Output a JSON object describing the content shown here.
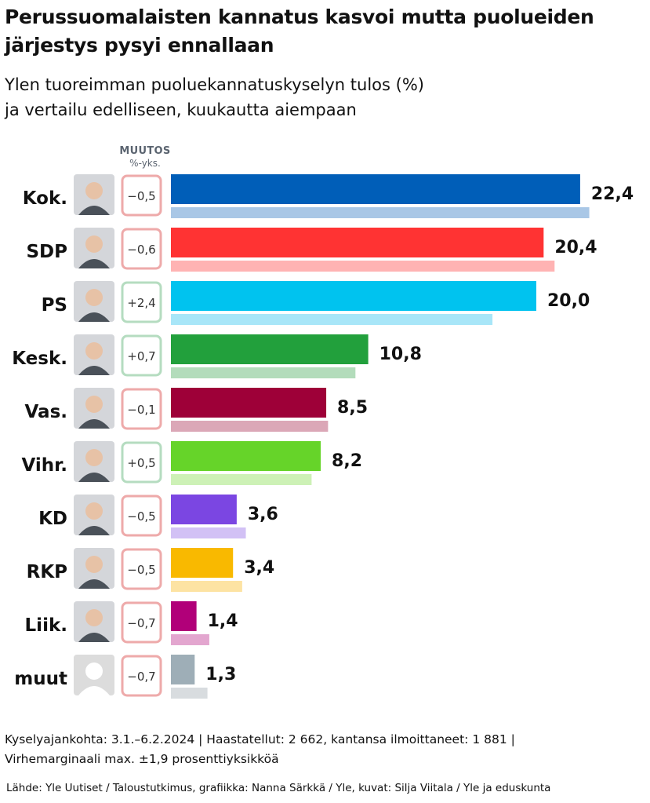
{
  "title": "Perussuomalaisten kannatus kasvoi mutta puolueiden järjestys pysyi ennallaan",
  "subtitle_line1": "Ylen tuoreimman puoluekannatuskyselyn tulos (%)",
  "subtitle_line2": "ja vertailu edelliseen, kuukautta aiempaan",
  "muutos_label": "MUUTOS",
  "muutos_unit": "%-yks.",
  "footer_line1": "Kyselyajankohta: 3.1.–6.2.2024 | Haastatellut: 2 662, kantansa ilmoittaneet: 1 881 |",
  "footer_line2": "Virhemarginaali max. ±1,9 prosenttiyksikköä",
  "source": "Lähde: Yle Uutiset / Taloustutkimus, grafiikka: Nanna Särkkä / Yle, kuvat: Silja Viitala / Yle ja eduskunta",
  "colors": {
    "increase_border": "#b5dcc0",
    "decrease_border": "#eeaaaa"
  },
  "chart_data": {
    "type": "bar",
    "orientation": "horizontal",
    "categories": [
      "Kok.",
      "SDP",
      "PS",
      "Kesk.",
      "Vas.",
      "Vihr.",
      "KD",
      "RKP",
      "Liik.",
      "muut"
    ],
    "current": [
      22.4,
      20.4,
      20.0,
      10.8,
      8.5,
      8.2,
      3.6,
      3.4,
      1.4,
      1.3
    ],
    "current_labels": [
      "22,4",
      "20,4",
      "20,0",
      "10,8",
      "8,5",
      "8,2",
      "3,6",
      "3,4",
      "1,4",
      "1,3"
    ],
    "previous": [
      22.9,
      21.0,
      17.6,
      10.1,
      8.6,
      7.7,
      4.1,
      3.9,
      2.1,
      2.0
    ],
    "change_labels": [
      "−0,5",
      "−0,6",
      "+2,4",
      "+0,7",
      "−0,1",
      "+0,5",
      "−0,5",
      "−0,5",
      "−0,7",
      "−0,7"
    ],
    "change_direction": [
      "down",
      "down",
      "up",
      "up",
      "down",
      "up",
      "down",
      "down",
      "down",
      "down"
    ],
    "colors": [
      "#005eb8",
      "#ff3333",
      "#00c3ef",
      "#22a03c",
      "#9e0038",
      "#66d429",
      "#7b46e2",
      "#f9b900",
      "#b10079",
      "#9eaeb7"
    ],
    "previous_colors": [
      "#a9c7e6",
      "#ffb3b3",
      "#a8e6f8",
      "#b3dcbb",
      "#dba7b7",
      "#cdf1b6",
      "#d2c1f5",
      "#fde3a3",
      "#e3a6cf",
      "#d8dcdf"
    ],
    "portrait_icons": [
      "person-portrait-icon",
      "person-portrait-icon",
      "person-portrait-icon",
      "person-portrait-icon",
      "person-portrait-icon",
      "person-portrait-icon",
      "person-portrait-icon",
      "person-portrait-icon",
      "person-portrait-icon",
      "placeholder-person-icon"
    ],
    "xlim": [
      0,
      25
    ],
    "legend": "none",
    "grid": false
  }
}
